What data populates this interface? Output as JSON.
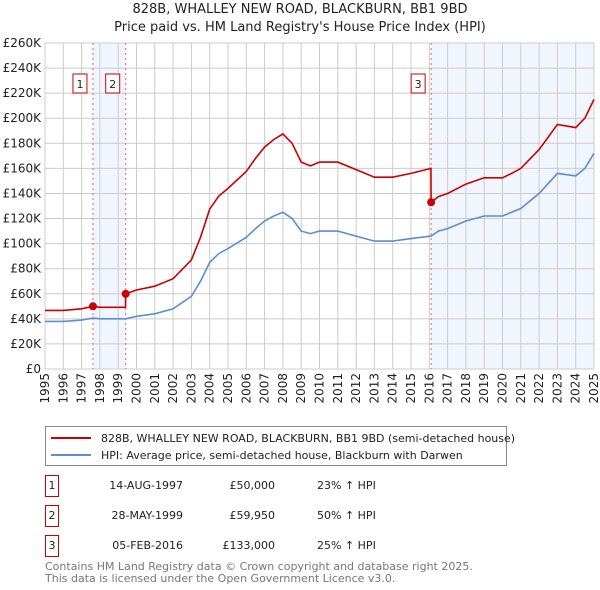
{
  "title": "828B, WHALLEY NEW ROAD, BLACKBURN, BB1 9BD",
  "subtitle": "Price paid vs. HM Land Registry's House Price Index (HPI)",
  "chart_data": {
    "type": "line",
    "title": "828B, WHALLEY NEW ROAD, BLACKBURN, BB1 9BD",
    "subtitle": "Price paid vs. HM Land Registry's House Price Index (HPI)",
    "xlim": [
      1995,
      2025
    ],
    "ylim": [
      0,
      260000
    ],
    "grid": true,
    "x_ticks": [
      "1995",
      "1996",
      "1997",
      "1998",
      "1999",
      "2000",
      "2001",
      "2002",
      "2003",
      "2004",
      "2005",
      "2006",
      "2007",
      "2008",
      "2009",
      "2010",
      "2011",
      "2012",
      "2013",
      "2014",
      "2015",
      "2016",
      "2017",
      "2018",
      "2019",
      "2020",
      "2021",
      "2022",
      "2023",
      "2024",
      "2025"
    ],
    "y_ticks": [
      {
        "value": 0,
        "label": "£0"
      },
      {
        "value": 20000,
        "label": "£20K"
      },
      {
        "value": 40000,
        "label": "£40K"
      },
      {
        "value": 60000,
        "label": "£60K"
      },
      {
        "value": 80000,
        "label": "£80K"
      },
      {
        "value": 100000,
        "label": "£100K"
      },
      {
        "value": 120000,
        "label": "£120K"
      },
      {
        "value": 140000,
        "label": "£140K"
      },
      {
        "value": 160000,
        "label": "£160K"
      },
      {
        "value": 180000,
        "label": "£180K"
      },
      {
        "value": 200000,
        "label": "£200K"
      },
      {
        "value": 220000,
        "label": "£220K"
      },
      {
        "value": 240000,
        "label": "£240K"
      },
      {
        "value": 260000,
        "label": "£260K"
      }
    ],
    "series": [
      {
        "name": "828B, WHALLEY NEW ROAD, BLACKBURN, BB1 9BD (semi-detached house)",
        "color": "#cc0000",
        "x": [
          1995,
          1996,
          1997,
          1997.62,
          1998,
          1999.4,
          1999.41,
          2000,
          2001,
          2002,
          2003,
          2003.5,
          2004,
          2004.5,
          2005,
          2006,
          2006.5,
          2007,
          2007.5,
          2008,
          2008.5,
          2009,
          2009.5,
          2010,
          2011,
          2012,
          2013,
          2014,
          2015,
          2016.09,
          2016.1,
          2016.5,
          2017,
          2018,
          2019,
          2020,
          2020.5,
          2021,
          2022,
          2023,
          2024,
          2024.5,
          2025
        ],
        "y": [
          46700,
          46700,
          48000,
          50000,
          49200,
          49200,
          59950,
          63000,
          66000,
          72000,
          87000,
          105000,
          127500,
          138000,
          144000,
          157500,
          168000,
          177000,
          183000,
          187500,
          180000,
          165000,
          162000,
          165000,
          165000,
          159000,
          153000,
          153000,
          156000,
          160000,
          133000,
          137500,
          140000,
          147500,
          152500,
          152500,
          156000,
          160000,
          175000,
          195000,
          192500,
          200000,
          215000
        ]
      },
      {
        "name": "HPI: Average price, semi-detached house, Blackburn with Darwen",
        "color": "#5b8ed6",
        "x": [
          1995,
          1996,
          1997,
          1997.62,
          1998,
          1999.4,
          2000,
          2001,
          2002,
          2003,
          2003.5,
          2004,
          2004.5,
          2005,
          2006,
          2006.5,
          2007,
          2007.5,
          2008,
          2008.5,
          2009,
          2009.5,
          2010,
          2011,
          2012,
          2013,
          2014,
          2015,
          2016.1,
          2016.5,
          2017,
          2018,
          2019,
          2020,
          2020.5,
          2021,
          2022,
          2023,
          2024,
          2024.5,
          2025
        ],
        "y": [
          38000,
          38000,
          39000,
          40600,
          40000,
          40000,
          42000,
          44000,
          48000,
          58000,
          70000,
          85000,
          92000,
          96000,
          105000,
          112000,
          118000,
          122000,
          125000,
          120000,
          110000,
          108000,
          110000,
          110000,
          106000,
          102000,
          102000,
          104000,
          106000,
          110000,
          112000,
          118000,
          122000,
          122000,
          125000,
          128000,
          140000,
          156000,
          154000,
          160000,
          172000
        ]
      }
    ],
    "sales": [
      {
        "label": "1",
        "x": 1997.62,
        "value": 50000
      },
      {
        "label": "2",
        "x": 1999.41,
        "value": 59950
      },
      {
        "label": "3",
        "x": 2016.1,
        "value": 133000
      }
    ],
    "legend_position": "below"
  },
  "legend": [
    {
      "label": "828B, WHALLEY NEW ROAD, BLACKBURN, BB1 9BD (semi-detached house)",
      "color": "#cc0000"
    },
    {
      "label": "HPI: Average price, semi-detached house, Blackburn with Darwen",
      "color": "#5b8ed6"
    }
  ],
  "transactions": [
    {
      "num": "1",
      "date": "14-AUG-1997",
      "price": "£50,000",
      "pct": "23% ↑ HPI"
    },
    {
      "num": "2",
      "date": "28-MAY-1999",
      "price": "£59,950",
      "pct": "50% ↑ HPI"
    },
    {
      "num": "3",
      "date": "05-FEB-2016",
      "price": "£133,000",
      "pct": "25% ↑ HPI"
    }
  ],
  "footer": [
    "Contains HM Land Registry data © Crown copyright and database right 2025.",
    "This data is licensed under the Open Government Licence v3.0."
  ]
}
